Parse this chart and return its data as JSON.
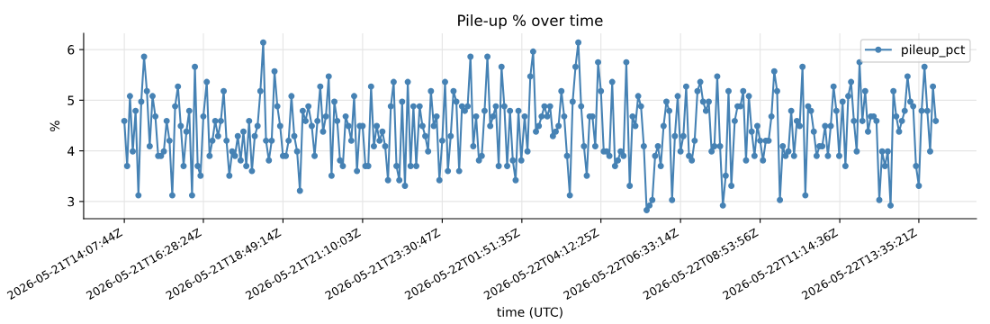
{
  "chart_data": {
    "type": "line",
    "title": "Pile-up % over time",
    "xlabel": "time (UTC)",
    "ylabel": "%",
    "x": [
      "2026-05-21T14:08",
      "2026-05-21T14:13",
      "2026-05-21T14:18",
      "2026-05-21T14:23",
      "2026-05-21T14:28",
      "2026-05-21T14:33",
      "2026-05-21T14:38",
      "2026-05-21T14:43",
      "2026-05-21T14:48",
      "2026-05-21T14:53",
      "2026-05-21T14:58",
      "2026-05-21T15:03",
      "2026-05-21T15:08",
      "2026-05-21T15:13",
      "2026-05-21T15:18",
      "2026-05-21T15:23",
      "2026-05-21T15:28",
      "2026-05-21T15:33",
      "2026-05-21T15:38",
      "2026-05-21T15:43",
      "2026-05-21T15:48",
      "2026-05-21T15:53",
      "2026-05-21T15:58",
      "2026-05-21T16:03",
      "2026-05-21T16:08",
      "2026-05-21T16:13",
      "2026-05-21T16:18",
      "2026-05-21T16:23",
      "2026-05-21T16:28",
      "2026-05-21T16:34",
      "2026-05-21T16:39",
      "2026-05-21T16:44",
      "2026-05-21T16:49",
      "2026-05-21T16:54",
      "2026-05-21T16:59",
      "2026-05-21T17:04",
      "2026-05-21T17:09",
      "2026-05-21T17:14",
      "2026-05-21T17:19",
      "2026-05-21T17:24",
      "2026-05-21T17:29",
      "2026-05-21T17:34",
      "2026-05-21T17:39",
      "2026-05-21T17:44",
      "2026-05-21T17:49",
      "2026-05-21T17:54",
      "2026-05-21T17:59",
      "2026-05-21T18:04",
      "2026-05-21T18:09",
      "2026-05-21T18:14",
      "2026-05-21T18:19",
      "2026-05-21T18:24",
      "2026-05-21T18:29",
      "2026-05-21T18:34",
      "2026-05-21T18:39",
      "2026-05-21T18:44",
      "2026-05-21T18:49",
      "2026-05-21T18:54",
      "2026-05-21T18:59",
      "2026-05-21T19:04",
      "2026-05-21T19:09",
      "2026-05-21T19:14",
      "2026-05-21T19:19",
      "2026-05-21T19:24",
      "2026-05-21T19:29",
      "2026-05-21T19:34",
      "2026-05-21T19:40",
      "2026-05-21T19:45",
      "2026-05-21T19:50",
      "2026-05-21T19:55",
      "2026-05-21T20:00",
      "2026-05-21T20:05",
      "2026-05-21T20:10",
      "2026-05-21T20:15",
      "2026-05-21T20:20",
      "2026-05-21T20:25",
      "2026-05-21T20:30",
      "2026-05-21T20:35",
      "2026-05-21T20:40",
      "2026-05-21T20:45",
      "2026-05-21T20:50",
      "2026-05-21T20:55",
      "2026-05-21T21:00",
      "2026-05-21T21:05",
      "2026-05-21T21:10",
      "2026-05-21T21:15",
      "2026-05-21T21:20",
      "2026-05-21T21:25",
      "2026-05-21T21:30",
      "2026-05-21T21:35",
      "2026-05-21T21:40",
      "2026-05-21T21:45",
      "2026-05-21T21:50",
      "2026-05-21T21:55",
      "2026-05-21T22:00",
      "2026-05-21T22:05",
      "2026-05-21T22:10",
      "2026-05-21T22:15",
      "2026-05-21T22:20",
      "2026-05-21T22:25",
      "2026-05-21T22:30",
      "2026-05-21T22:35",
      "2026-05-21T22:40",
      "2026-05-21T22:45",
      "2026-05-21T22:51",
      "2026-05-21T22:56",
      "2026-05-21T23:01",
      "2026-05-21T23:06",
      "2026-05-21T23:11",
      "2026-05-21T23:16",
      "2026-05-21T23:21",
      "2026-05-21T23:26",
      "2026-05-21T23:31",
      "2026-05-21T23:36",
      "2026-05-21T23:41",
      "2026-05-21T23:46",
      "2026-05-21T23:51",
      "2026-05-21T23:56",
      "2026-05-22T00:01",
      "2026-05-22T00:06",
      "2026-05-22T00:11",
      "2026-05-22T00:16",
      "2026-05-22T00:21",
      "2026-05-22T00:26",
      "2026-05-22T00:31",
      "2026-05-22T00:36",
      "2026-05-22T00:41",
      "2026-05-22T00:46",
      "2026-05-22T00:51",
      "2026-05-22T00:56",
      "2026-05-22T01:01",
      "2026-05-22T01:06",
      "2026-05-22T01:11",
      "2026-05-22T01:16",
      "2026-05-22T01:21",
      "2026-05-22T01:26",
      "2026-05-22T01:31",
      "2026-05-22T01:36",
      "2026-05-22T01:41",
      "2026-05-22T01:46",
      "2026-05-22T01:51",
      "2026-05-22T01:57",
      "2026-05-22T02:02",
      "2026-05-22T02:07",
      "2026-05-22T02:12",
      "2026-05-22T02:17",
      "2026-05-22T02:22",
      "2026-05-22T02:27",
      "2026-05-22T02:32",
      "2026-05-22T02:37",
      "2026-05-22T02:42",
      "2026-05-22T02:47",
      "2026-05-22T02:52",
      "2026-05-22T02:57",
      "2026-05-22T03:02",
      "2026-05-22T03:07",
      "2026-05-22T03:12",
      "2026-05-22T03:17",
      "2026-05-22T03:22",
      "2026-05-22T03:27",
      "2026-05-22T03:32",
      "2026-05-22T03:37",
      "2026-05-22T03:42",
      "2026-05-22T03:47",
      "2026-05-22T03:52",
      "2026-05-22T03:57",
      "2026-05-22T04:02",
      "2026-05-22T04:07",
      "2026-05-22T04:12",
      "2026-05-22T04:17",
      "2026-05-22T04:22",
      "2026-05-22T04:27",
      "2026-05-22T04:32",
      "2026-05-22T04:37",
      "2026-05-22T04:42",
      "2026-05-22T04:47",
      "2026-05-22T04:52",
      "2026-05-22T04:57",
      "2026-05-22T05:03",
      "2026-05-22T05:08",
      "2026-05-22T05:13",
      "2026-05-22T05:18",
      "2026-05-22T05:23",
      "2026-05-22T05:28",
      "2026-05-22T05:33",
      "2026-05-22T05:38",
      "2026-05-22T05:43",
      "2026-05-22T05:48",
      "2026-05-22T05:53",
      "2026-05-22T05:58",
      "2026-05-22T06:03",
      "2026-05-22T06:08",
      "2026-05-22T06:13",
      "2026-05-22T06:18",
      "2026-05-22T06:23",
      "2026-05-22T06:28",
      "2026-05-22T06:33",
      "2026-05-22T06:38",
      "2026-05-22T06:43",
      "2026-05-22T06:48",
      "2026-05-22T06:53",
      "2026-05-22T06:58",
      "2026-05-22T07:03",
      "2026-05-22T07:08",
      "2026-05-22T07:13",
      "2026-05-22T07:18",
      "2026-05-22T07:23",
      "2026-05-22T07:28",
      "2026-05-22T07:33",
      "2026-05-22T07:38",
      "2026-05-22T07:43",
      "2026-05-22T07:48",
      "2026-05-22T07:53",
      "2026-05-22T07:58",
      "2026-05-22T08:03",
      "2026-05-22T08:09",
      "2026-05-22T08:14",
      "2026-05-22T08:19",
      "2026-05-22T08:24",
      "2026-05-22T08:29",
      "2026-05-22T08:34",
      "2026-05-22T08:39",
      "2026-05-22T08:44",
      "2026-05-22T08:49",
      "2026-05-22T08:54",
      "2026-05-22T08:59",
      "2026-05-22T09:04",
      "2026-05-22T09:09",
      "2026-05-22T09:14",
      "2026-05-22T09:19",
      "2026-05-22T09:24",
      "2026-05-22T09:29",
      "2026-05-22T09:34",
      "2026-05-22T09:39",
      "2026-05-22T09:44",
      "2026-05-22T09:49",
      "2026-05-22T09:54",
      "2026-05-22T09:59",
      "2026-05-22T10:04",
      "2026-05-22T10:09",
      "2026-05-22T10:14",
      "2026-05-22T10:19",
      "2026-05-22T10:24",
      "2026-05-22T10:29",
      "2026-05-22T10:34",
      "2026-05-22T10:39",
      "2026-05-22T10:44",
      "2026-05-22T10:49",
      "2026-05-22T10:54",
      "2026-05-22T10:59",
      "2026-05-22T11:04",
      "2026-05-22T11:09",
      "2026-05-22T11:14",
      "2026-05-22T11:20",
      "2026-05-22T11:25",
      "2026-05-22T11:30",
      "2026-05-22T11:35",
      "2026-05-22T11:40",
      "2026-05-22T11:45",
      "2026-05-22T11:50",
      "2026-05-22T11:55",
      "2026-05-22T12:00",
      "2026-05-22T12:05",
      "2026-05-22T12:10",
      "2026-05-22T12:15",
      "2026-05-22T12:20",
      "2026-05-22T12:25",
      "2026-05-22T12:30",
      "2026-05-22T12:35",
      "2026-05-22T12:40",
      "2026-05-22T12:45",
      "2026-05-22T12:50",
      "2026-05-22T12:55",
      "2026-05-22T13:00",
      "2026-05-22T13:05",
      "2026-05-22T13:10",
      "2026-05-22T13:15",
      "2026-05-22T13:20",
      "2026-05-22T13:25",
      "2026-05-22T13:30",
      "2026-05-22T13:35",
      "2026-05-22T13:40",
      "2026-05-22T13:45",
      "2026-05-22T13:50",
      "2026-05-22T13:55",
      "2026-05-22T14:00",
      "2026-05-22T14:05"
    ],
    "series": [
      {
        "name": "pileup_pct",
        "color": "#4682b4",
        "values": [
          4.59,
          3.7,
          5.08,
          3.99,
          4.79,
          3.12,
          4.97,
          5.86,
          5.18,
          4.09,
          5.08,
          4.68,
          3.9,
          3.9,
          3.99,
          4.59,
          4.2,
          3.12,
          4.88,
          5.27,
          4.49,
          3.7,
          4.38,
          4.79,
          3.12,
          5.66,
          3.7,
          3.51,
          4.68,
          5.36,
          3.9,
          4.2,
          4.59,
          4.29,
          4.59,
          5.18,
          4.2,
          3.51,
          3.99,
          3.9,
          4.29,
          3.81,
          4.38,
          3.7,
          4.59,
          3.6,
          4.29,
          4.49,
          5.18,
          6.14,
          4.2,
          3.81,
          4.2,
          5.57,
          4.88,
          4.49,
          3.9,
          3.9,
          4.2,
          5.08,
          4.29,
          3.99,
          3.21,
          4.79,
          4.59,
          4.88,
          4.49,
          3.9,
          4.59,
          5.27,
          4.38,
          4.68,
          5.47,
          3.51,
          4.97,
          4.59,
          3.81,
          3.7,
          4.68,
          4.49,
          4.2,
          5.08,
          3.6,
          4.49,
          4.49,
          3.7,
          3.7,
          5.27,
          4.09,
          4.49,
          4.2,
          4.38,
          4.09,
          3.42,
          4.88,
          5.36,
          3.7,
          3.42,
          4.97,
          3.31,
          5.36,
          3.7,
          4.88,
          3.7,
          4.88,
          4.49,
          4.29,
          3.99,
          5.18,
          4.49,
          4.68,
          3.42,
          4.2,
          5.36,
          3.6,
          4.29,
          5.18,
          4.97,
          3.6,
          4.88,
          4.79,
          4.88,
          5.86,
          4.09,
          4.68,
          3.81,
          3.9,
          4.79,
          5.86,
          4.49,
          4.68,
          4.88,
          3.7,
          5.66,
          4.88,
          3.7,
          4.79,
          3.81,
          3.42,
          4.79,
          3.81,
          4.68,
          3.99,
          5.47,
          5.96,
          4.38,
          4.49,
          4.68,
          4.88,
          4.68,
          4.88,
          4.29,
          4.38,
          4.49,
          5.18,
          4.68,
          3.9,
          3.12,
          4.97,
          5.66,
          6.14,
          4.88,
          4.09,
          3.51,
          4.68,
          4.68,
          4.09,
          5.75,
          5.18,
          3.99,
          3.99,
          3.9,
          5.36,
          3.7,
          3.81,
          3.99,
          3.9,
          5.75,
          3.31,
          4.68,
          4.49,
          5.08,
          4.88,
          4.09,
          2.83,
          2.92,
          3.03,
          3.9,
          4.09,
          3.7,
          4.49,
          4.97,
          4.79,
          3.03,
          4.29,
          5.08,
          3.99,
          4.29,
          5.27,
          3.9,
          3.81,
          4.2,
          5.18,
          5.36,
          4.97,
          4.79,
          4.97,
          3.99,
          4.09,
          5.47,
          4.09,
          2.92,
          3.51,
          5.18,
          3.31,
          4.59,
          4.88,
          4.88,
          5.18,
          3.81,
          5.08,
          4.38,
          3.9,
          4.49,
          4.2,
          3.81,
          4.2,
          4.2,
          4.68,
          5.57,
          5.18,
          3.03,
          4.09,
          3.9,
          3.99,
          4.79,
          3.9,
          4.59,
          4.49,
          5.66,
          3.12,
          4.88,
          4.79,
          4.38,
          3.9,
          4.09,
          4.09,
          4.49,
          3.9,
          4.49,
          5.27,
          4.79,
          3.9,
          4.97,
          3.7,
          5.08,
          5.36,
          4.59,
          3.99,
          5.75,
          4.59,
          5.18,
          4.38,
          4.68,
          4.68,
          4.59,
          3.03,
          3.99,
          3.7,
          3.99,
          2.92,
          5.18,
          4.68,
          4.38,
          4.59,
          4.79,
          5.47,
          4.97,
          4.88,
          3.7,
          3.31,
          4.79,
          5.66,
          4.79,
          3.99,
          5.27,
          4.59
        ]
      }
    ],
    "xlim": [
      "2026-05-21T12:56",
      "2026-05-22T15:17"
    ],
    "xticks": [
      {
        "value": "2026-05-21T14:08",
        "label": "2026-05-21T14:07:44Z"
      },
      {
        "value": "2026-05-21T16:28",
        "label": "2026-05-21T16:28:24Z"
      },
      {
        "value": "2026-05-21T18:49",
        "label": "2026-05-21T18:49:14Z"
      },
      {
        "value": "2026-05-21T21:10",
        "label": "2026-05-21T21:10:03Z"
      },
      {
        "value": "2026-05-21T23:31",
        "label": "2026-05-21T23:30:47Z"
      },
      {
        "value": "2026-05-22T01:52",
        "label": "2026-05-22T01:51:35Z"
      },
      {
        "value": "2026-05-22T04:12",
        "label": "2026-05-22T04:12:25Z"
      },
      {
        "value": "2026-05-22T06:33",
        "label": "2026-05-22T06:33:14Z"
      },
      {
        "value": "2026-05-22T08:54",
        "label": "2026-05-22T08:53:56Z"
      },
      {
        "value": "2026-05-22T11:15",
        "label": "2026-05-22T11:14:36Z"
      },
      {
        "value": "2026-05-22T13:35",
        "label": "2026-05-22T13:35:21Z"
      }
    ],
    "ylim": [
      2.66,
      6.32
    ],
    "yticks": [
      3,
      4,
      5,
      6
    ],
    "grid": true,
    "legend": "top right",
    "marker": "circle",
    "line_style": "solid"
  }
}
